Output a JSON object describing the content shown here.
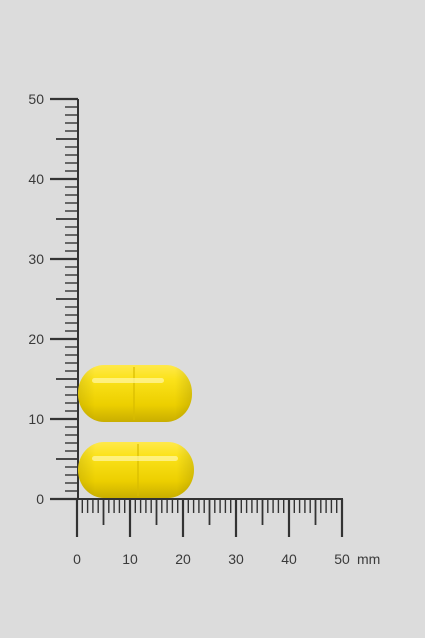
{
  "ruler": {
    "y_axis_labels": [
      "0",
      "10",
      "20",
      "30",
      "40",
      "50"
    ],
    "x_axis_labels": [
      "0",
      "10",
      "20",
      "30",
      "40",
      "50"
    ],
    "unit": "mm",
    "range_mm": [
      0,
      50
    ],
    "minor_tick_mm": 1,
    "major_tick_mm": 5,
    "labeled_tick_mm": 10,
    "color": "#333333"
  },
  "capsules": [
    {
      "name": "top-capsule",
      "color": "#f5dc00",
      "x_range_mm": [
        0,
        21
      ],
      "y_range_mm": [
        10,
        17
      ]
    },
    {
      "name": "bottom-capsule",
      "color": "#f5dc00",
      "x_range_mm": [
        0,
        21
      ],
      "y_range_mm": [
        0,
        7
      ]
    }
  ],
  "background_color": "#dcdcdc"
}
